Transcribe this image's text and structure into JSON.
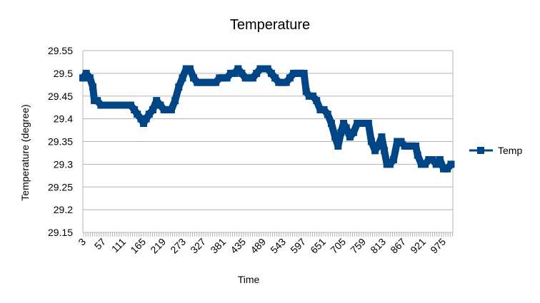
{
  "chart_data": {
    "type": "line",
    "title": "Temperature",
    "xlabel": "Time",
    "ylabel": "Temperature (degree)",
    "ylim": [
      29.15,
      29.55
    ],
    "yticks": [
      "29.55",
      "29.5",
      "29.45",
      "29.4",
      "29.35",
      "29.3",
      "29.25",
      "29.2",
      "29.15"
    ],
    "xlim": [
      1,
      1000
    ],
    "xticks": [
      "3",
      "57",
      "111",
      "165",
      "219",
      "273",
      "327",
      "381",
      "435",
      "489",
      "543",
      "597",
      "651",
      "705",
      "759",
      "813",
      "867",
      "921",
      "975"
    ],
    "grid": "horizontal",
    "legend_position": "right",
    "series": [
      {
        "name": "Temp",
        "color": "#004586",
        "marker": "square",
        "points": [
          [
            1,
            29.49
          ],
          [
            10,
            29.5
          ],
          [
            20,
            29.49
          ],
          [
            28,
            29.47
          ],
          [
            32,
            29.44
          ],
          [
            40,
            29.44
          ],
          [
            50,
            29.43
          ],
          [
            60,
            29.43
          ],
          [
            70,
            29.43
          ],
          [
            80,
            29.43
          ],
          [
            90,
            29.43
          ],
          [
            100,
            29.43
          ],
          [
            110,
            29.43
          ],
          [
            120,
            29.43
          ],
          [
            130,
            29.43
          ],
          [
            140,
            29.42
          ],
          [
            148,
            29.41
          ],
          [
            158,
            29.4
          ],
          [
            165,
            29.39
          ],
          [
            172,
            29.4
          ],
          [
            180,
            29.41
          ],
          [
            190,
            29.42
          ],
          [
            200,
            29.44
          ],
          [
            210,
            29.43
          ],
          [
            220,
            29.42
          ],
          [
            230,
            29.42
          ],
          [
            240,
            29.42
          ],
          [
            250,
            29.44
          ],
          [
            260,
            29.47
          ],
          [
            270,
            29.49
          ],
          [
            280,
            29.51
          ],
          [
            290,
            29.51
          ],
          [
            300,
            29.49
          ],
          [
            310,
            29.48
          ],
          [
            320,
            29.48
          ],
          [
            330,
            29.48
          ],
          [
            340,
            29.48
          ],
          [
            350,
            29.48
          ],
          [
            360,
            29.48
          ],
          [
            370,
            29.49
          ],
          [
            380,
            29.49
          ],
          [
            390,
            29.49
          ],
          [
            400,
            29.5
          ],
          [
            410,
            29.5
          ],
          [
            420,
            29.51
          ],
          [
            430,
            29.5
          ],
          [
            440,
            29.49
          ],
          [
            450,
            29.49
          ],
          [
            460,
            29.49
          ],
          [
            470,
            29.5
          ],
          [
            480,
            29.51
          ],
          [
            490,
            29.51
          ],
          [
            500,
            29.51
          ],
          [
            510,
            29.5
          ],
          [
            520,
            29.49
          ],
          [
            530,
            29.48
          ],
          [
            540,
            29.48
          ],
          [
            550,
            29.48
          ],
          [
            560,
            29.49
          ],
          [
            570,
            29.5
          ],
          [
            580,
            29.5
          ],
          [
            590,
            29.5
          ],
          [
            598,
            29.5
          ],
          [
            604,
            29.46
          ],
          [
            612,
            29.45
          ],
          [
            622,
            29.45
          ],
          [
            632,
            29.44
          ],
          [
            642,
            29.42
          ],
          [
            652,
            29.42
          ],
          [
            662,
            29.41
          ],
          [
            672,
            29.39
          ],
          [
            682,
            29.36
          ],
          [
            690,
            29.34
          ],
          [
            698,
            29.37
          ],
          [
            705,
            29.39
          ],
          [
            712,
            29.38
          ],
          [
            722,
            29.36
          ],
          [
            732,
            29.37
          ],
          [
            742,
            29.39
          ],
          [
            752,
            29.39
          ],
          [
            762,
            29.39
          ],
          [
            772,
            29.39
          ],
          [
            780,
            29.35
          ],
          [
            790,
            29.33
          ],
          [
            798,
            29.34
          ],
          [
            808,
            29.36
          ],
          [
            815,
            29.33
          ],
          [
            822,
            29.3
          ],
          [
            830,
            29.3
          ],
          [
            840,
            29.31
          ],
          [
            850,
            29.35
          ],
          [
            860,
            29.35
          ],
          [
            870,
            29.34
          ],
          [
            880,
            29.34
          ],
          [
            890,
            29.34
          ],
          [
            900,
            29.34
          ],
          [
            905,
            29.32
          ],
          [
            915,
            29.3
          ],
          [
            925,
            29.3
          ],
          [
            935,
            29.31
          ],
          [
            945,
            29.31
          ],
          [
            955,
            29.3
          ],
          [
            965,
            29.31
          ],
          [
            975,
            29.29
          ],
          [
            985,
            29.29
          ],
          [
            995,
            29.3
          ]
        ]
      }
    ]
  }
}
